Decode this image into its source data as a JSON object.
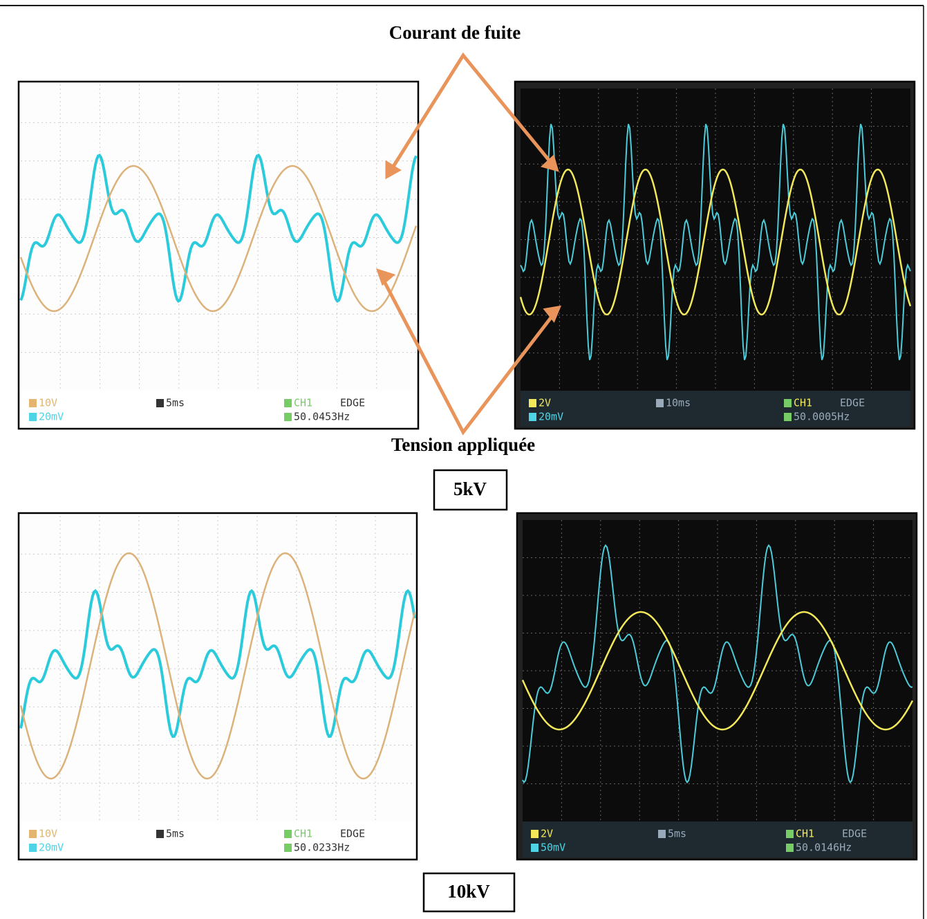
{
  "annotations": {
    "leakage_current": "Courant de fuite",
    "applied_voltage": "Tension appliquée"
  },
  "groups": [
    {
      "label": "5kV"
    },
    {
      "label": "10kV"
    }
  ],
  "scopes": [
    {
      "ch1_scale": "10V",
      "ch2_scale": "20mV",
      "timebase": "5ms",
      "trigger_source": "CH1",
      "trigger_mode": "EDGE",
      "frequency": "50.0453Hz"
    },
    {
      "ch1_scale": "2V",
      "ch2_scale": "20mV",
      "timebase": "10ms",
      "trigger_source": "CH1",
      "trigger_mode": "EDGE",
      "frequency": "50.0005Hz"
    },
    {
      "ch1_scale": "10V",
      "ch2_scale": "20mV",
      "timebase": "5ms",
      "trigger_source": "CH1",
      "trigger_mode": "EDGE",
      "frequency": "50.0233Hz"
    },
    {
      "ch1_scale": "2V",
      "ch2_scale": "50mV",
      "timebase": "5ms",
      "trigger_source": "CH1",
      "trigger_mode": "EDGE",
      "frequency": "50.0146Hz"
    }
  ]
}
